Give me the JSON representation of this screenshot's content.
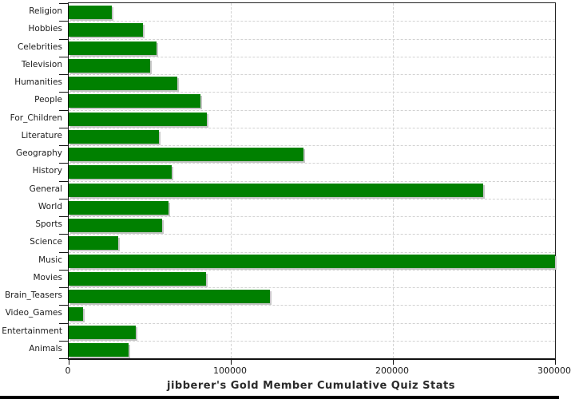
{
  "title": "jibberer's Gold Member Cumulative Quiz Stats",
  "chart_data": {
    "type": "bar",
    "orientation": "horizontal",
    "title": "jibberer's Gold Member Cumulative Quiz Stats",
    "xlabel": "",
    "ylabel": "",
    "categories": [
      "Religion",
      "Hobbies",
      "Celebrities",
      "Television",
      "Humanities",
      "People",
      "For_Children",
      "Literature",
      "Geography",
      "History",
      "General",
      "World",
      "Sports",
      "Science",
      "Music",
      "Movies",
      "Brain_Teasers",
      "Video_Games",
      "Entertainment",
      "Animals"
    ],
    "values": [
      26500,
      46000,
      54000,
      50000,
      67000,
      81500,
      85000,
      55500,
      145000,
      63500,
      255500,
      61500,
      57500,
      30500,
      300000,
      84500,
      124000,
      9000,
      41500,
      37000
    ],
    "xlim": [
      0,
      300000
    ],
    "x_ticks": [
      0,
      100000,
      200000,
      300000
    ],
    "x_tick_labels": [
      "0",
      "100000",
      "200000",
      "300000"
    ],
    "grid": "dashed",
    "legend": "none",
    "colors": {
      "bar": "#008000",
      "bar_shadow": "#c6c6c6",
      "grid": "#d2d2d2",
      "axis": "#111111",
      "text": "#1c1c1c",
      "background": "#ffffff",
      "bottom_strip": "#000000"
    }
  }
}
